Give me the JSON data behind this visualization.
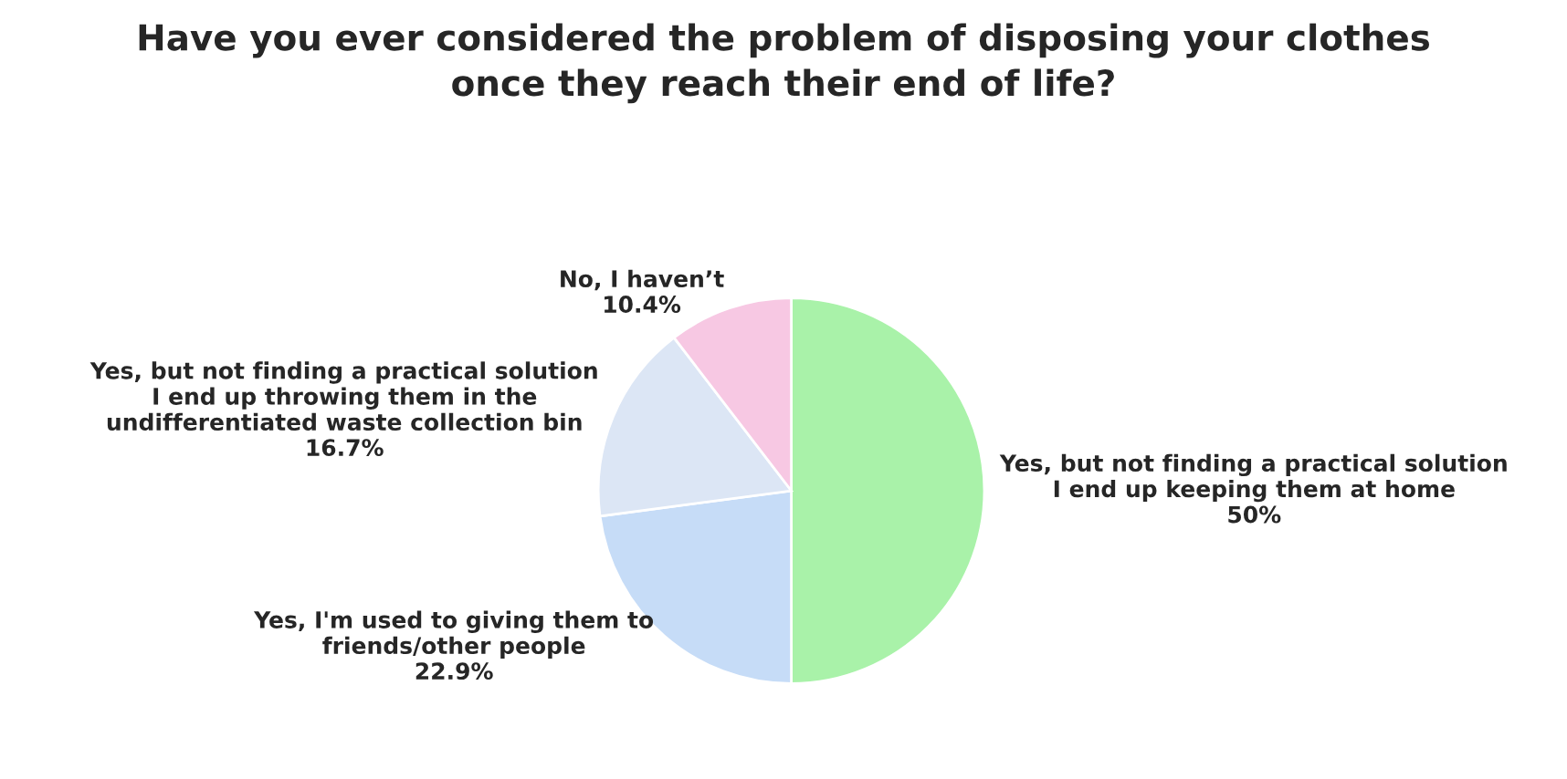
{
  "chart_data": {
    "type": "pie",
    "title": "Have you ever considered the problem of disposing your clothes\nonce they reach their end of life?",
    "categories": [
      "Yes, but not finding a practical solution\nI end up keeping them at home",
      "Yes, I'm used to giving them to\nfriends/other people",
      "Yes, but not finding a practical solution\nI end up throwing them in the\nundifferentiated waste collection bin",
      "No, I haven’t"
    ],
    "values": [
      50,
      22.9,
      16.7,
      10.4
    ],
    "value_labels": [
      "50%",
      "22.9%",
      "16.7%",
      "10.4%"
    ],
    "colors": [
      "#a9f2a9",
      "#c6dcf7",
      "#dce6f5",
      "#f7c8e3"
    ],
    "legend": false
  }
}
